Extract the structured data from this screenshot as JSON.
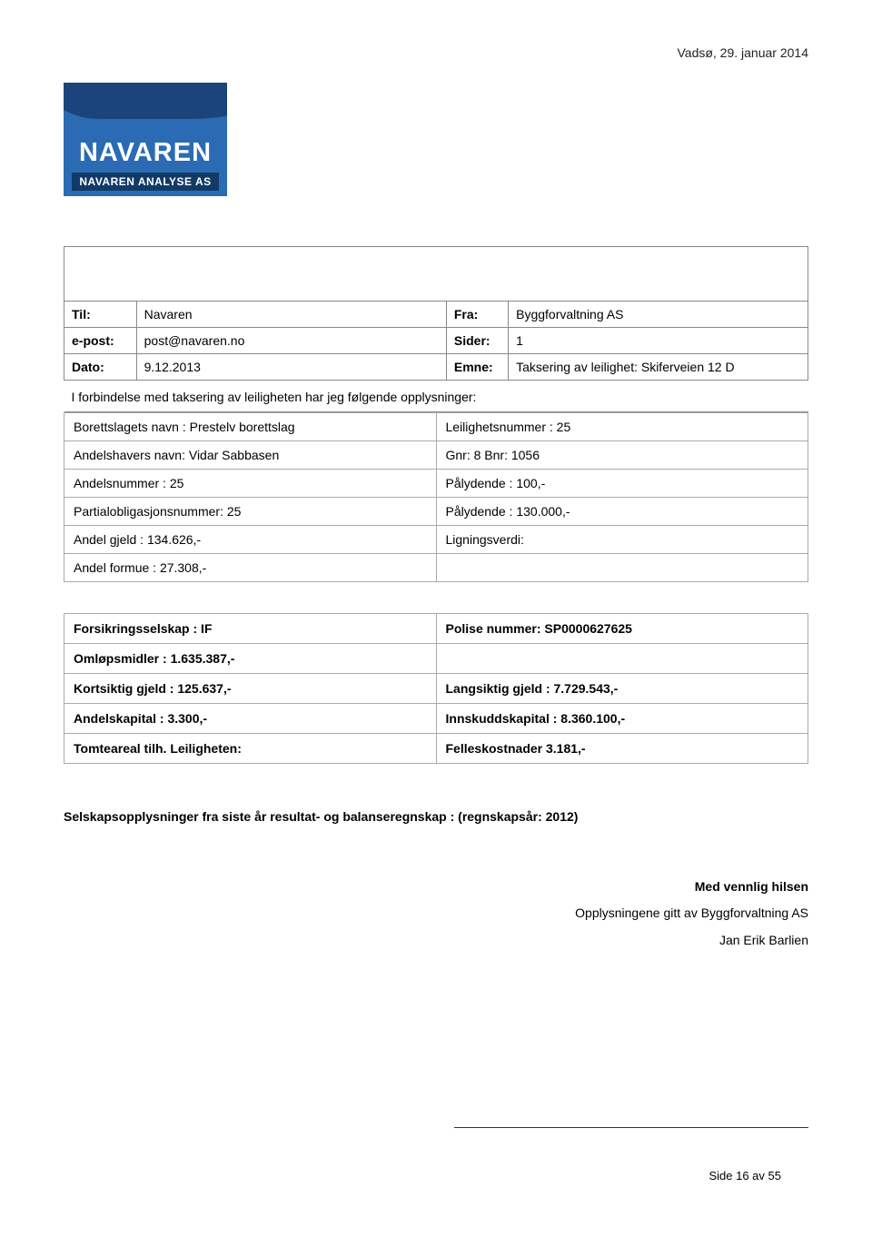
{
  "header": {
    "location_date": "Vadsø, 29. januar 2014"
  },
  "logo": {
    "main": "NAVAREN",
    "sub": "NAVAREN ANALYSE AS"
  },
  "info": {
    "til_label": "Til:",
    "til_value": "Navaren",
    "fra_label": "Fra:",
    "fra_value": "Byggforvaltning AS",
    "epost_label": "e-post:",
    "epost_value": "post@navaren.no",
    "sider_label": "Sider:",
    "sider_value": "1",
    "dato_label": "Dato:",
    "dato_value": "9.12.2013",
    "emne_label": "Emne:",
    "emne_value": "Taksering av leilighet: Skiferveien 12 D"
  },
  "intro": "I forbindelse med taksering av leiligheten har jeg følgende opplysninger:",
  "details": {
    "r1l": "Borettslagets navn :  Prestelv borettslag",
    "r1r": "Leilighetsnummer : 25",
    "r2l": "Andelshavers navn: Vidar Sabbasen",
    "r2r": "Gnr: 8  Bnr: 1056",
    "r3l": "Andelsnummer : 25",
    "r3r": "Pålydende :    100,-",
    "r4l": "Partialobligasjonsnummer: 25",
    "r4r": "Pålydende :   130.000,-",
    "r5l": "Andel gjeld :  134.626,-",
    "r5r": "Ligningsverdi:",
    "r6l": "Andel formue :  27.308,-",
    "r6r": ""
  },
  "fin": {
    "r1l": "Forsikringsselskap :  IF",
    "r1r": "Polise nummer: SP0000627625",
    "r2l": "Omløpsmidler :  1.635.387,-",
    "r2r": "",
    "r3l": "Kortsiktig gjeld :  125.637,-",
    "r3r": "Langsiktig gjeld :  7.729.543,-",
    "r4l": "Andelskapital :  3.300,-",
    "r4r": "Innskuddskapital :  8.360.100,-",
    "r5l": "Tomteareal tilh. Leiligheten:",
    "r5r": "Felleskostnader 3.181,-"
  },
  "statement": "Selskapsopplysninger fra siste år resultat- og balanseregnskap : (regnskapsår: 2012)",
  "signoff": {
    "greet": "Med vennlig hilsen",
    "line1": "Opplysningene gitt av Byggforvaltning AS",
    "line2": "Jan Erik Barlien"
  },
  "footer": {
    "page": "Side 16 av 55"
  }
}
